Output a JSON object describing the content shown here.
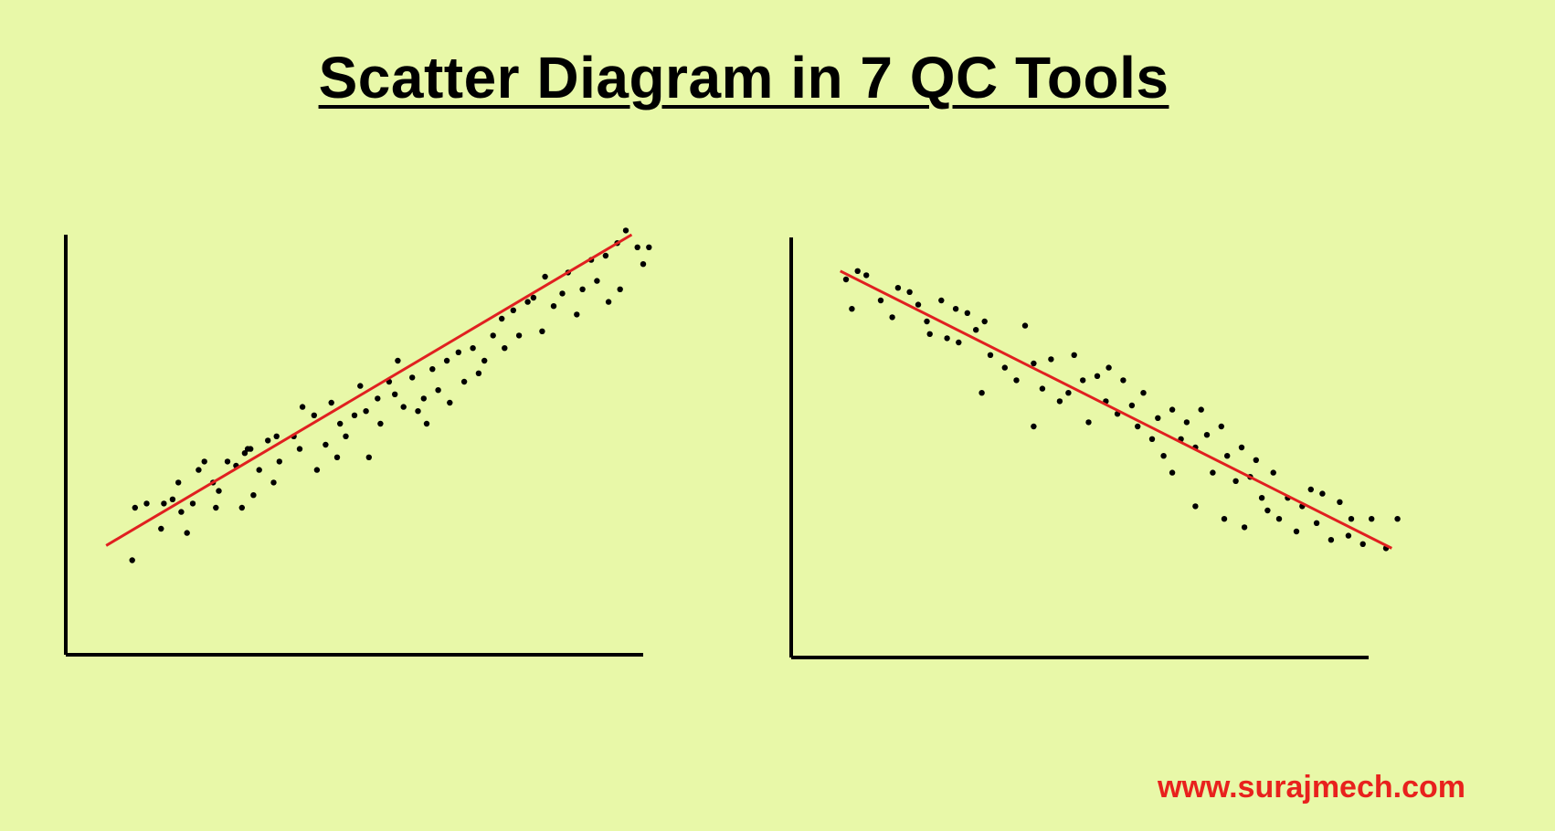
{
  "title": "Scatter Diagram in 7 QC Tools",
  "watermark": "www.surajmech.com",
  "colors": {
    "background": "#e8f8a8",
    "points": "#000000",
    "trend_line": "#e02020",
    "watermark": "#e8211d"
  },
  "chart_data": [
    {
      "type": "scatter",
      "title": "",
      "xlabel": "",
      "ylabel": "",
      "xlim": [
        0,
        100
      ],
      "ylim": [
        0,
        100
      ],
      "grid": false,
      "trend_line": {
        "x": [
          7,
          98
        ],
        "y": [
          26,
          100
        ]
      },
      "points": [
        [
          12,
          35
        ],
        [
          11.5,
          22.5
        ],
        [
          14,
          36
        ],
        [
          16.5,
          30
        ],
        [
          17,
          36
        ],
        [
          18.5,
          37
        ],
        [
          19.5,
          41
        ],
        [
          20,
          34
        ],
        [
          23,
          44
        ],
        [
          22,
          36
        ],
        [
          24,
          46
        ],
        [
          25.5,
          41
        ],
        [
          26.5,
          39
        ],
        [
          26,
          35
        ],
        [
          28,
          46
        ],
        [
          29.5,
          45
        ],
        [
          31,
          48
        ],
        [
          30.5,
          35
        ],
        [
          32,
          49
        ],
        [
          32.5,
          38
        ],
        [
          33.5,
          44
        ],
        [
          35,
          51
        ],
        [
          36.5,
          52
        ],
        [
          36,
          41
        ],
        [
          37,
          46
        ],
        [
          39.5,
          52
        ],
        [
          41,
          59
        ],
        [
          40.5,
          49
        ],
        [
          43,
          57
        ],
        [
          43.5,
          44
        ],
        [
          45,
          50
        ],
        [
          46,
          60
        ],
        [
          47.5,
          55
        ],
        [
          48.5,
          52
        ],
        [
          50,
          57
        ],
        [
          51,
          64
        ],
        [
          52,
          58
        ],
        [
          54,
          61
        ],
        [
          54.5,
          55
        ],
        [
          56,
          65
        ],
        [
          57,
          62
        ],
        [
          58.5,
          59
        ],
        [
          60,
          66
        ],
        [
          61,
          58
        ],
        [
          62,
          61
        ],
        [
          63.5,
          68
        ],
        [
          64.5,
          63
        ],
        [
          66,
          70
        ],
        [
          66.5,
          60
        ],
        [
          68,
          72
        ],
        [
          69,
          65
        ],
        [
          70.5,
          73
        ],
        [
          71.5,
          67
        ],
        [
          72.5,
          70
        ],
        [
          74,
          76
        ],
        [
          75.5,
          80
        ],
        [
          76,
          73
        ],
        [
          77.5,
          82
        ],
        [
          78.5,
          76
        ],
        [
          80,
          84
        ],
        [
          81,
          85
        ],
        [
          82.5,
          77
        ],
        [
          83,
          90
        ],
        [
          84.5,
          83
        ],
        [
          86,
          86
        ],
        [
          87,
          91
        ],
        [
          88.5,
          81
        ],
        [
          89.5,
          87
        ],
        [
          91,
          94
        ],
        [
          92,
          89
        ],
        [
          93.5,
          95
        ],
        [
          94,
          84
        ],
        [
          95.5,
          98
        ],
        [
          96,
          87
        ],
        [
          97,
          101
        ],
        [
          99,
          97
        ],
        [
          100,
          93
        ],
        [
          101,
          97
        ],
        [
          62.5,
          55
        ],
        [
          47,
          47
        ],
        [
          21,
          29
        ],
        [
          31.5,
          49
        ],
        [
          52.5,
          47
        ],
        [
          57.5,
          70
        ]
      ]
    },
    {
      "type": "scatter",
      "title": "",
      "xlabel": "",
      "ylabel": "",
      "xlim": [
        0,
        100
      ],
      "ylim": [
        0,
        100
      ],
      "grid": false,
      "trend_line": {
        "x": [
          8.5,
          104
        ],
        "y": [
          92,
          26
        ]
      },
      "points": [
        [
          9.5,
          90
        ],
        [
          10.5,
          83
        ],
        [
          11.5,
          92
        ],
        [
          13,
          91
        ],
        [
          15.5,
          85
        ],
        [
          17.5,
          81
        ],
        [
          18.5,
          88
        ],
        [
          20.5,
          87
        ],
        [
          22,
          84
        ],
        [
          23.5,
          80
        ],
        [
          24,
          77
        ],
        [
          26,
          85
        ],
        [
          27,
          76
        ],
        [
          28.5,
          83
        ],
        [
          29,
          75
        ],
        [
          30.5,
          82
        ],
        [
          32,
          78
        ],
        [
          33.5,
          80
        ],
        [
          34.5,
          72
        ],
        [
          33,
          63
        ],
        [
          37,
          69
        ],
        [
          39,
          66
        ],
        [
          40.5,
          79
        ],
        [
          42,
          70
        ],
        [
          43.5,
          64
        ],
        [
          45,
          71
        ],
        [
          46.5,
          61
        ],
        [
          48,
          63
        ],
        [
          49,
          72
        ],
        [
          50.5,
          66
        ],
        [
          51.5,
          56
        ],
        [
          53,
          67
        ],
        [
          54.5,
          61
        ],
        [
          55,
          69
        ],
        [
          56.5,
          58
        ],
        [
          57.5,
          66
        ],
        [
          59,
          60
        ],
        [
          60,
          55
        ],
        [
          61,
          63
        ],
        [
          62.5,
          52
        ],
        [
          63.5,
          57
        ],
        [
          64.5,
          48
        ],
        [
          66,
          59
        ],
        [
          67.5,
          52
        ],
        [
          68.5,
          56
        ],
        [
          70,
          50
        ],
        [
          71,
          59
        ],
        [
          72,
          53
        ],
        [
          73,
          44
        ],
        [
          74.5,
          55
        ],
        [
          75.5,
          48
        ],
        [
          77,
          42
        ],
        [
          78,
          50
        ],
        [
          79.5,
          43
        ],
        [
          80.5,
          47
        ],
        [
          81.5,
          38
        ],
        [
          82.5,
          35
        ],
        [
          83.5,
          44
        ],
        [
          84.5,
          33
        ],
        [
          86,
          38
        ],
        [
          87.5,
          30
        ],
        [
          88.5,
          36
        ],
        [
          90,
          40
        ],
        [
          91,
          32
        ],
        [
          92,
          39
        ],
        [
          93.5,
          28
        ],
        [
          95,
          37
        ],
        [
          96.5,
          29
        ],
        [
          97,
          33
        ],
        [
          99,
          27
        ],
        [
          100.5,
          33
        ],
        [
          103,
          26
        ],
        [
          105,
          33
        ],
        [
          75,
          33
        ],
        [
          78.5,
          31
        ],
        [
          70,
          36
        ],
        [
          66,
          44
        ],
        [
          42,
          55
        ]
      ]
    }
  ]
}
